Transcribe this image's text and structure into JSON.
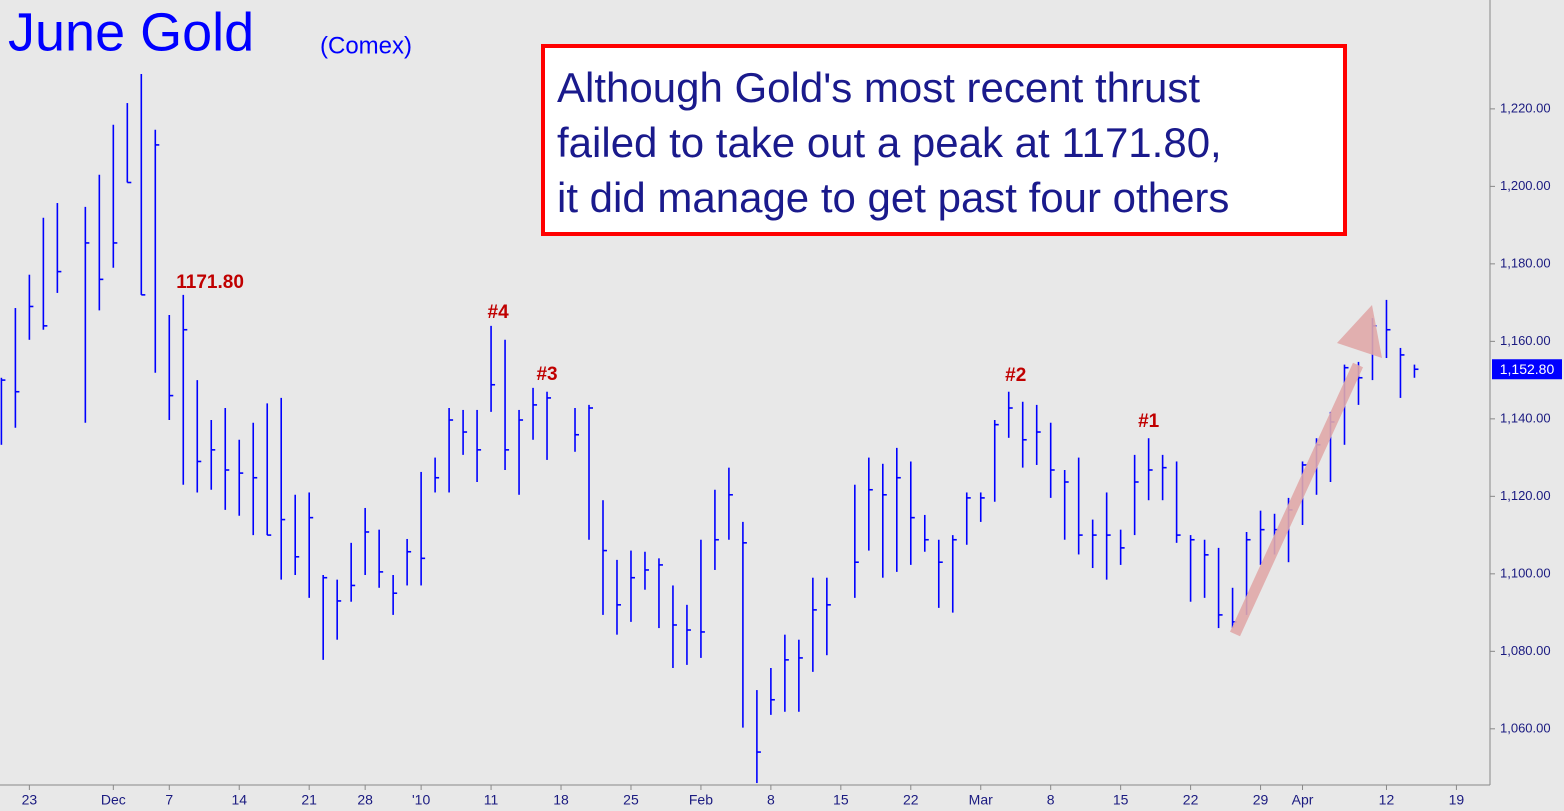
{
  "chart_data": {
    "type": "ohlc",
    "title": "June Gold",
    "subtitle": "(Comex)",
    "callout": [
      "Although Gold's most recent thrust",
      "failed to take out a peak at 1171.80,",
      "it did manage to get past four others"
    ],
    "annotations": [
      "1171.80",
      "#4",
      "#3",
      "#2",
      "#1"
    ],
    "color": "#0000ff",
    "xlim": [
      -0.1,
      106.4
    ],
    "ylim": [
      1045.5,
      1248.1
    ],
    "yticks": [
      {
        "value": 1060,
        "label": "1,060.00"
      },
      {
        "value": 1080,
        "label": "1,080.00"
      },
      {
        "value": 1100,
        "label": "1,100.00"
      },
      {
        "value": 1120,
        "label": "1,120.00"
      },
      {
        "value": 1140,
        "label": "1,140.00"
      },
      {
        "value": 1160,
        "label": "1,160.00"
      },
      {
        "value": 1180,
        "label": "1,180.00"
      },
      {
        "value": 1200,
        "label": "1,200.00"
      },
      {
        "value": 1220,
        "label": "1,220.00"
      }
    ],
    "xticks": [
      {
        "value": 2,
        "label": "23"
      },
      {
        "value": 8,
        "label": "Dec"
      },
      {
        "value": 12,
        "label": "7"
      },
      {
        "value": 17,
        "label": "14"
      },
      {
        "value": 22,
        "label": "21"
      },
      {
        "value": 26,
        "label": "28"
      },
      {
        "value": 30,
        "label": "'10"
      },
      {
        "value": 35,
        "label": "11"
      },
      {
        "value": 40,
        "label": "18"
      },
      {
        "value": 45,
        "label": "25"
      },
      {
        "value": 50,
        "label": "Feb"
      },
      {
        "value": 55,
        "label": "8"
      },
      {
        "value": 60,
        "label": "15"
      },
      {
        "value": 65,
        "label": "22"
      },
      {
        "value": 70,
        "label": "Mar"
      },
      {
        "value": 75,
        "label": "8"
      },
      {
        "value": 80,
        "label": "15"
      },
      {
        "value": 85,
        "label": "22"
      },
      {
        "value": 90,
        "label": "29"
      },
      {
        "value": 93,
        "label": "Apr"
      },
      {
        "value": 99,
        "label": "12"
      },
      {
        "value": 104,
        "label": "19"
      }
    ],
    "last_price": {
      "value": 1152.8,
      "label": "1,152.80"
    },
    "high": [
      1150.6,
      1168.6,
      1177.2,
      1191.9,
      1195.7,
      null,
      1194.7,
      1203,
      1215.9,
      1221.5,
      1229,
      1214.6,
      1166.8,
      1172,
      1150,
      1139.7,
      1142.8,
      1134.6,
      1139,
      1144,
      1145.4,
      1120.4,
      1121,
      1099.7,
      1098.5,
      1108,
      1117,
      1111.4,
      1099.7,
      1109,
      1126.3,
      1130,
      1142.8,
      1142.3,
      1142.3,
      1164,
      1160.4,
      1142.3,
      1148,
      1147,
      null,
      1142.8,
      1143.6,
      1119,
      1103.6,
      1106,
      1105.7,
      1104,
      1097,
      1092,
      1108.8,
      1121.7,
      1127.4,
      1113.4,
      1070,
      1075.7,
      1084.3,
      1083,
      1099,
      1099,
      null,
      1123,
      1130,
      1128.4,
      1132.5,
      1129,
      1115.2,
      1108.8,
      1110,
      1121,
      1121,
      1139.7,
      1147,
      1144.4,
      1143.6,
      1139,
      1126.8,
      1130,
      1114,
      1121,
      1111.4,
      1130.7,
      1135,
      1130.7,
      1129,
      1110,
      1108.8,
      1106.7,
      1096.4,
      1110.8,
      1116.3,
      1115.5,
      1119.6,
      1129,
      1135,
      1141.8,
      1154,
      1154.7,
      1166,
      1170.7,
      1158.3,
      1154
    ],
    "low": [
      1133.3,
      1137.7,
      1160.4,
      1163,
      1172.5,
      null,
      1139,
      1168,
      1179,
      1201,
      1172,
      1151.9,
      1139.7,
      1123,
      1121,
      1121.7,
      1116.5,
      1115,
      1110,
      1110,
      1098.5,
      1099.7,
      1093.8,
      1077.8,
      1083,
      1092.8,
      1099.7,
      1096.4,
      1089.4,
      1097,
      1097,
      1121,
      1121,
      1130.7,
      1123.7,
      1141.8,
      1126.8,
      1120.4,
      1134.6,
      1129.4,
      null,
      1131.5,
      1108.8,
      1089.4,
      1084.3,
      1087.6,
      1095.9,
      1086,
      1075.7,
      1076.5,
      1078.3,
      1101,
      1108.8,
      1060.3,
      1046,
      1063.6,
      1064.4,
      1064.4,
      1074.7,
      1079,
      null,
      1093.8,
      1106,
      1099,
      1100.5,
      1102.3,
      1105.7,
      1091.2,
      1090,
      1107.5,
      1113.4,
      1118.6,
      1135.1,
      1127.4,
      1128.1,
      1119.6,
      1108.8,
      1105,
      1101.5,
      1098.5,
      1102.3,
      1110,
      1119,
      1119,
      1108,
      1092.8,
      1093.8,
      1086,
      1086,
      1089.4,
      1102.3,
      1105,
      1103,
      1112.6,
      1120.4,
      1123.7,
      1133.3,
      1143.6,
      1150,
      1155.7,
      1145.4,
      1150.6
    ],
    "close": [
      1150,
      1147,
      1169,
      1164,
      1178,
      null,
      1185.4,
      1176,
      1185.4,
      1201,
      1172,
      1210.7,
      1146,
      1163,
      1129,
      1132,
      1126.8,
      1126,
      1124.8,
      1110,
      1114,
      1104.4,
      1114.5,
      1099,
      1093,
      1097,
      1110.8,
      1100.5,
      1095,
      1105.7,
      1104,
      1124.8,
      1139.7,
      1136.6,
      1132,
      1148.8,
      1132,
      1139.7,
      1143.6,
      1145.4,
      null,
      1135.9,
      1142.8,
      1106,
      1092,
      1099,
      1101,
      1102.3,
      1086.8,
      1085.5,
      1085,
      1108.8,
      1120.4,
      1108,
      1054,
      1067.5,
      1077.8,
      1078.3,
      1090.7,
      1092,
      null,
      1103,
      1121.7,
      1120.4,
      1124.8,
      1114.5,
      1108.8,
      1103,
      1108.8,
      1119.6,
      1119.6,
      1138.5,
      1142.8,
      1134.6,
      1136.6,
      1126.8,
      1123.7,
      1110,
      1110,
      1110,
      1106.7,
      1123.7,
      1126.8,
      1127.4,
      1110,
      1108.8,
      1104.9,
      1089.4,
      1087.6,
      1108.8,
      1111.4,
      1111.4,
      1116.5,
      1128.1,
      1133.3,
      1139.2,
      1153.2,
      1150.6,
      1164,
      1163,
      1156.5,
      1152.8
    ]
  }
}
